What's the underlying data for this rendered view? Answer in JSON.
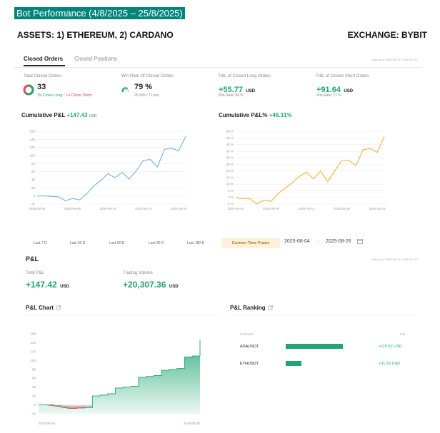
{
  "header": {
    "banner": "Bot Performance (4/8/2025 – 25/8/2025)",
    "assets": "ASSETS: 1) ETHEREUM, 2) CARDANO",
    "exchange": "EXCHANGE: BYBIT"
  },
  "tabs": {
    "active": "Closed Orders",
    "inactive": "Closed Positions"
  },
  "data_as_of_top": "Data as of 2025-08-25 23:59:59 UTC",
  "stats": {
    "total_closed": {
      "label": "Total Closed Orders",
      "value": "33",
      "long": "19 Close Long",
      "slash": " / ",
      "short": "14 Close Short"
    },
    "win_rate": {
      "label": "Win Rate Of Closed Orders",
      "value": "79 %",
      "detail": "26 Win / 7 Loss"
    },
    "long_pnl": {
      "label": "P&L of Closed Long Orders",
      "value": "+55.77",
      "unit": "USD",
      "detail": "Win Rate: 84 %"
    },
    "short_pnl": {
      "label": "P&L of Closed Short Orders",
      "value": "+91.64",
      "unit": "USD",
      "detail": "Win Rate: 71 %"
    }
  },
  "cum_pnl": {
    "title": "Cumulative P&L",
    "value": "+147.43",
    "unit": "USD"
  },
  "cum_pnl_pct": {
    "title": "Cumulative P&L%",
    "value": "+46.31%"
  },
  "ranges": {
    "d7": "Last 7 D",
    "d30": "Last 30 D",
    "d60": "Last 60 D",
    "d90": "Last 90 D",
    "d180": "Last 180 D",
    "custom": "Custom Time Frame"
  },
  "date_range": {
    "start": "2025-08-04",
    "arrow": "→",
    "end": "2025-08-26"
  },
  "pnl_section": {
    "title": "P&L",
    "data_as_of": "Data as of 2025-08-25 23:59:59 UTC",
    "total_label": "Total P&L",
    "total_value": "+147.42",
    "total_unit": "USD",
    "volume_label": "Trading Volume",
    "volume_value": "+20,307.36",
    "volume_unit": "USD"
  },
  "pnl_chart_title": "P&L Chart",
  "pnl_ranking": {
    "title": "P&L Ranking",
    "col_symbol": "Contracts",
    "col_pnl": "P&L",
    "rows": [
      {
        "symbol": "ADAUSDT",
        "value": "+115.52 USD",
        "num": 115.52
      },
      {
        "symbol": "ETHUSDT",
        "value": "+31.90 USD",
        "num": 31.9
      }
    ]
  },
  "colors": {
    "accent_green": "#1fa672",
    "loss_red": "#e5484d",
    "line_blue": "#7fb6e2",
    "line_gold": "#f0b84a",
    "banner": "#00857d"
  },
  "icons": {
    "ring": "donut-ring-icon",
    "gauge": "win-rate-gauge-icon",
    "calendar": "calendar-icon",
    "external": "external-link-icon"
  },
  "chart_data": [
    {
      "type": "line",
      "title": "Cumulative P&L",
      "x": [
        "2025-08-04",
        "2025-08-05",
        "2025-08-06",
        "2025-08-07",
        "2025-08-08",
        "2025-08-09",
        "2025-08-10",
        "2025-08-11",
        "2025-08-12",
        "2025-08-13",
        "2025-08-14",
        "2025-08-15",
        "2025-08-16",
        "2025-08-17",
        "2025-08-18",
        "2025-08-19",
        "2025-08-20",
        "2025-08-21",
        "2025-08-22",
        "2025-08-23",
        "2025-08-24",
        "2025-08-25"
      ],
      "series": [
        {
          "values": [
            0,
            0,
            -1,
            -2,
            -12,
            -6,
            -10,
            5,
            25,
            38,
            55,
            45,
            58,
            42,
            62,
            88,
            90,
            72,
            115,
            118,
            112,
            147
          ]
        }
      ],
      "x_ticks": [
        "2025-08-04",
        "2025-08-09",
        "2025-08-14",
        "2025-08-19",
        "2025-08-24"
      ],
      "y_ticks": [
        -20,
        0,
        20,
        40,
        60,
        80,
        100,
        120,
        140,
        160
      ],
      "ylim": [
        -20,
        160
      ],
      "grid": true
    },
    {
      "type": "line",
      "title": "Cumulative P&L%",
      "x": [
        "2025-08-04",
        "2025-08-05",
        "2025-08-06",
        "2025-08-07",
        "2025-08-08",
        "2025-08-09",
        "2025-08-10",
        "2025-08-11",
        "2025-08-12",
        "2025-08-13",
        "2025-08-14",
        "2025-08-15",
        "2025-08-16",
        "2025-08-17",
        "2025-08-18",
        "2025-08-19",
        "2025-08-20",
        "2025-08-21",
        "2025-08-22",
        "2025-08-23",
        "2025-08-24",
        "2025-08-25"
      ],
      "series": [
        {
          "values": [
            0,
            -1,
            -1,
            -5,
            -2,
            -3,
            3,
            7,
            11,
            16,
            19,
            14,
            20,
            12,
            20,
            28,
            28,
            24,
            36,
            37,
            34,
            46
          ]
        }
      ],
      "x_ticks": [
        "2025-08-04",
        "2025-08-09",
        "2025-08-14",
        "2025-08-19",
        "2025-08-24"
      ],
      "y_ticks": [
        "-5 %",
        "0 %",
        "5 %",
        "10 %",
        "15 %",
        "20 %",
        "25 %",
        "30 %",
        "35 %",
        "40 %",
        "45 %",
        "50 %"
      ],
      "ylim": [
        -5,
        50
      ],
      "grid": true
    },
    {
      "type": "area",
      "title": "P&L Chart",
      "x": [
        "2025-08-04",
        "2025-08-05",
        "2025-08-06",
        "2025-08-07",
        "2025-08-08",
        "2025-08-09",
        "2025-08-10",
        "2025-08-11",
        "2025-08-12",
        "2025-08-13",
        "2025-08-14",
        "2025-08-15",
        "2025-08-16",
        "2025-08-17",
        "2025-08-18",
        "2025-08-19",
        "2025-08-20",
        "2025-08-21",
        "2025-08-22",
        "2025-08-23",
        "2025-08-24",
        "2025-08-25"
      ],
      "series": [
        {
          "values": [
            0,
            0,
            -2,
            -5,
            -8,
            -7,
            -6,
            20,
            22,
            25,
            38,
            40,
            42,
            62,
            64,
            66,
            78,
            80,
            82,
            108,
            110,
            147
          ]
        }
      ],
      "x_ticks": [
        "2025-08-04",
        "2025-08-25"
      ],
      "y_ticks": [
        -20,
        0,
        20,
        40,
        60,
        80,
        100,
        120,
        140,
        160
      ],
      "ylim": [
        -20,
        160
      ],
      "positive_color": "#1fa672",
      "negative_color": "#e5484d"
    },
    {
      "type": "bar",
      "title": "P&L Ranking",
      "categories": [
        "ADAUSDT",
        "ETHUSDT"
      ],
      "values": [
        115.52,
        31.9
      ]
    }
  ]
}
